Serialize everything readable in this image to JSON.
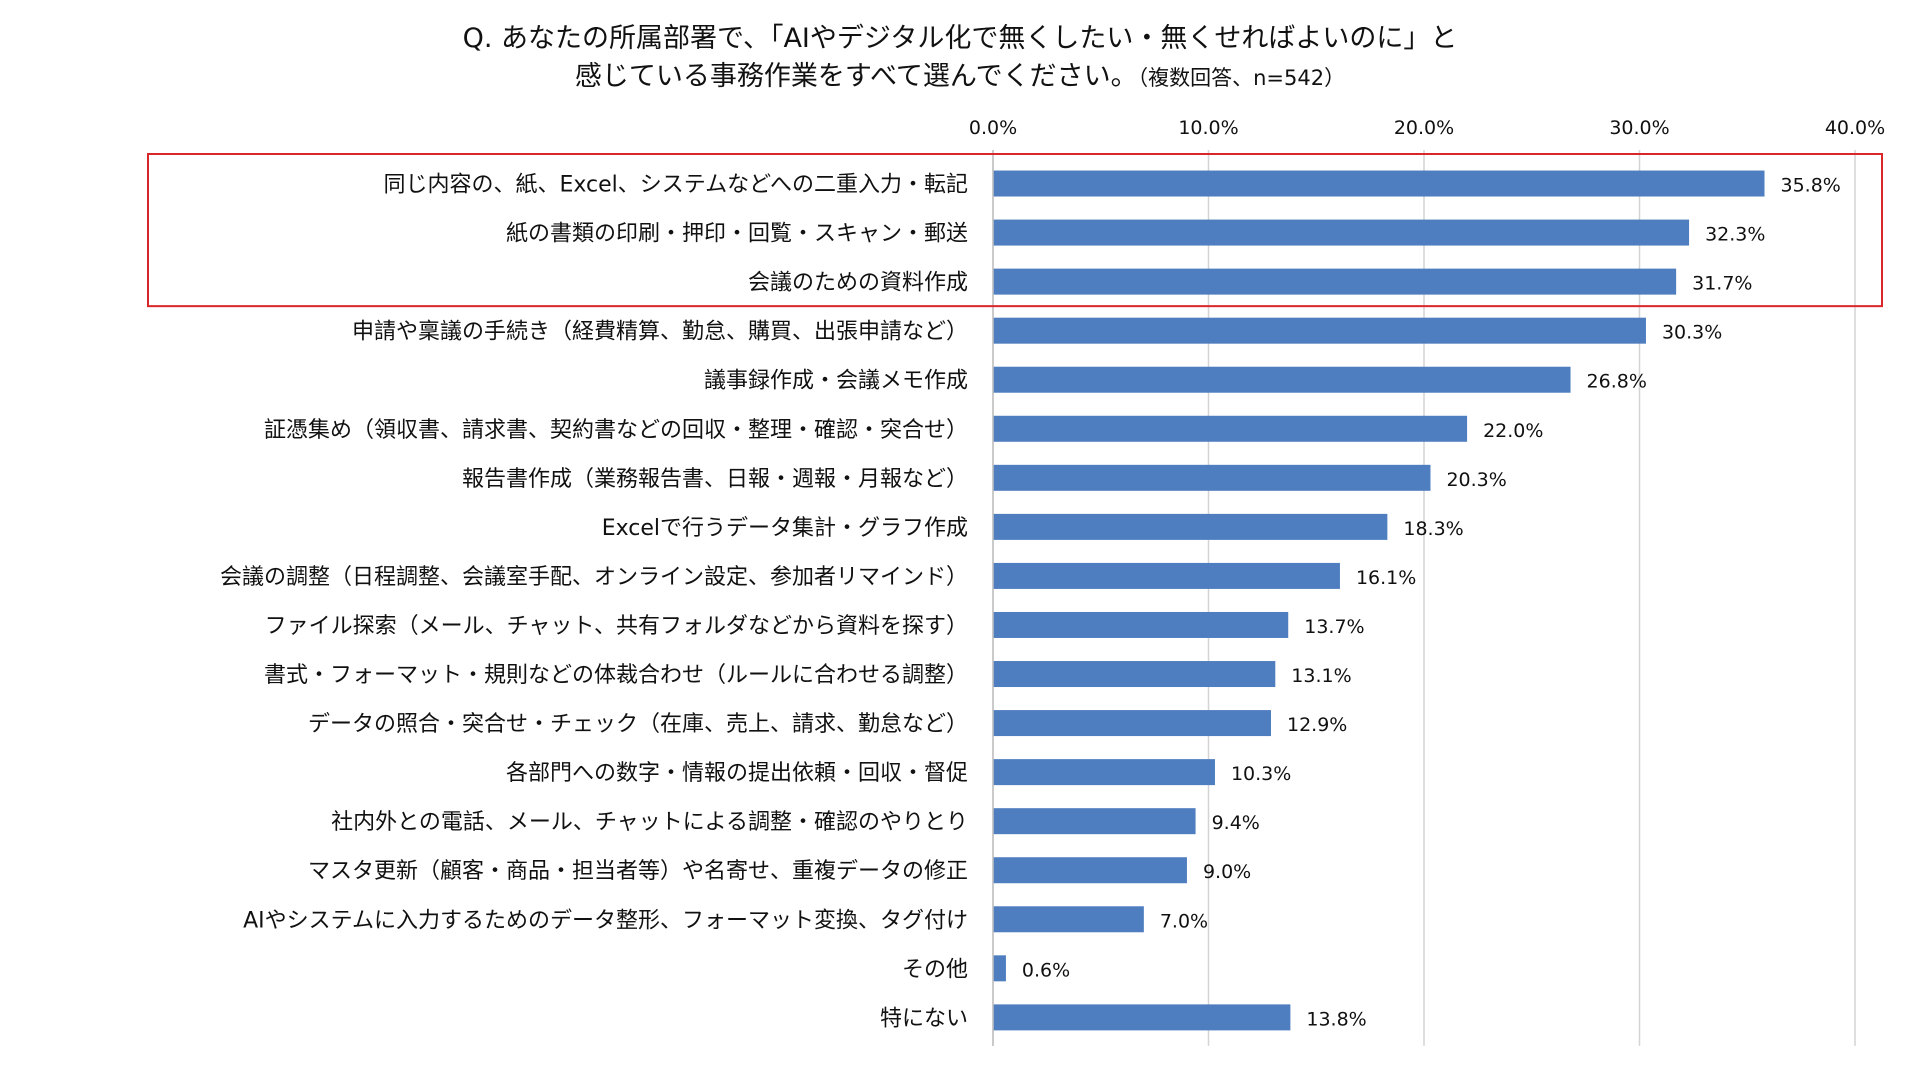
{
  "chart_data": {
    "type": "bar",
    "orientation": "horizontal",
    "title_line1": "Q. あなたの所属部署で、「AIやデジタル化で無くしたい・無くせればよいのに」と",
    "title_line2": "感じている事務作業をすべて選んでください。",
    "title_note": "（複数回答、n=542）",
    "xlim": [
      0,
      40
    ],
    "ticks": [
      "0.0%",
      "10.0%",
      "20.0%",
      "30.0%",
      "40.0%"
    ],
    "tick_values": [
      0,
      10,
      20,
      30,
      40
    ],
    "bar_color": "#4f7ec0",
    "highlight_color": "#d9262b",
    "highlight_count": 3,
    "grid": true,
    "categories": [
      "同じ内容の、紙、Excel、システムなどへの二重入力・転記",
      "紙の書類の印刷・押印・回覧・スキャン・郵送",
      "会議のための資料作成",
      "申請や稟議の手続き（経費精算、勤怠、購買、出張申請など）",
      "議事録作成・会議メモ作成",
      "証憑集め（領収書、請求書、契約書などの回収・整理・確認・突合せ）",
      "報告書作成（業務報告書、日報・週報・月報など）",
      "Excelで行うデータ集計・グラフ作成",
      "会議の調整（日程調整、会議室手配、オンライン設定、参加者リマインド）",
      "ファイル探索（メール、チャット、共有フォルダなどから資料を探す）",
      "書式・フォーマット・規則などの体裁合わせ（ルールに合わせる調整）",
      "データの照合・突合せ・チェック（在庫、売上、請求、勤怠など）",
      "各部門への数字・情報の提出依頼・回収・督促",
      "社内外との電話、メール、チャットによる調整・確認のやりとり",
      "マスタ更新（顧客・商品・担当者等）や名寄せ、重複データの修正",
      "AIやシステムに入力するためのデータ整形、フォーマット変換、タグ付け",
      "その他",
      "特にない"
    ],
    "values": [
      35.8,
      32.3,
      31.7,
      30.3,
      26.8,
      22.0,
      20.3,
      18.3,
      16.1,
      13.7,
      13.1,
      12.9,
      10.3,
      9.4,
      9.0,
      7.0,
      0.6,
      13.8
    ],
    "value_labels": [
      "35.8%",
      "32.3%",
      "31.7%",
      "30.3%",
      "26.8%",
      "22.0%",
      "20.3%",
      "18.3%",
      "16.1%",
      "13.7%",
      "13.1%",
      "12.9%",
      "10.3%",
      "9.4%",
      "9.0%",
      "7.0%",
      "0.6%",
      "13.8%"
    ]
  }
}
